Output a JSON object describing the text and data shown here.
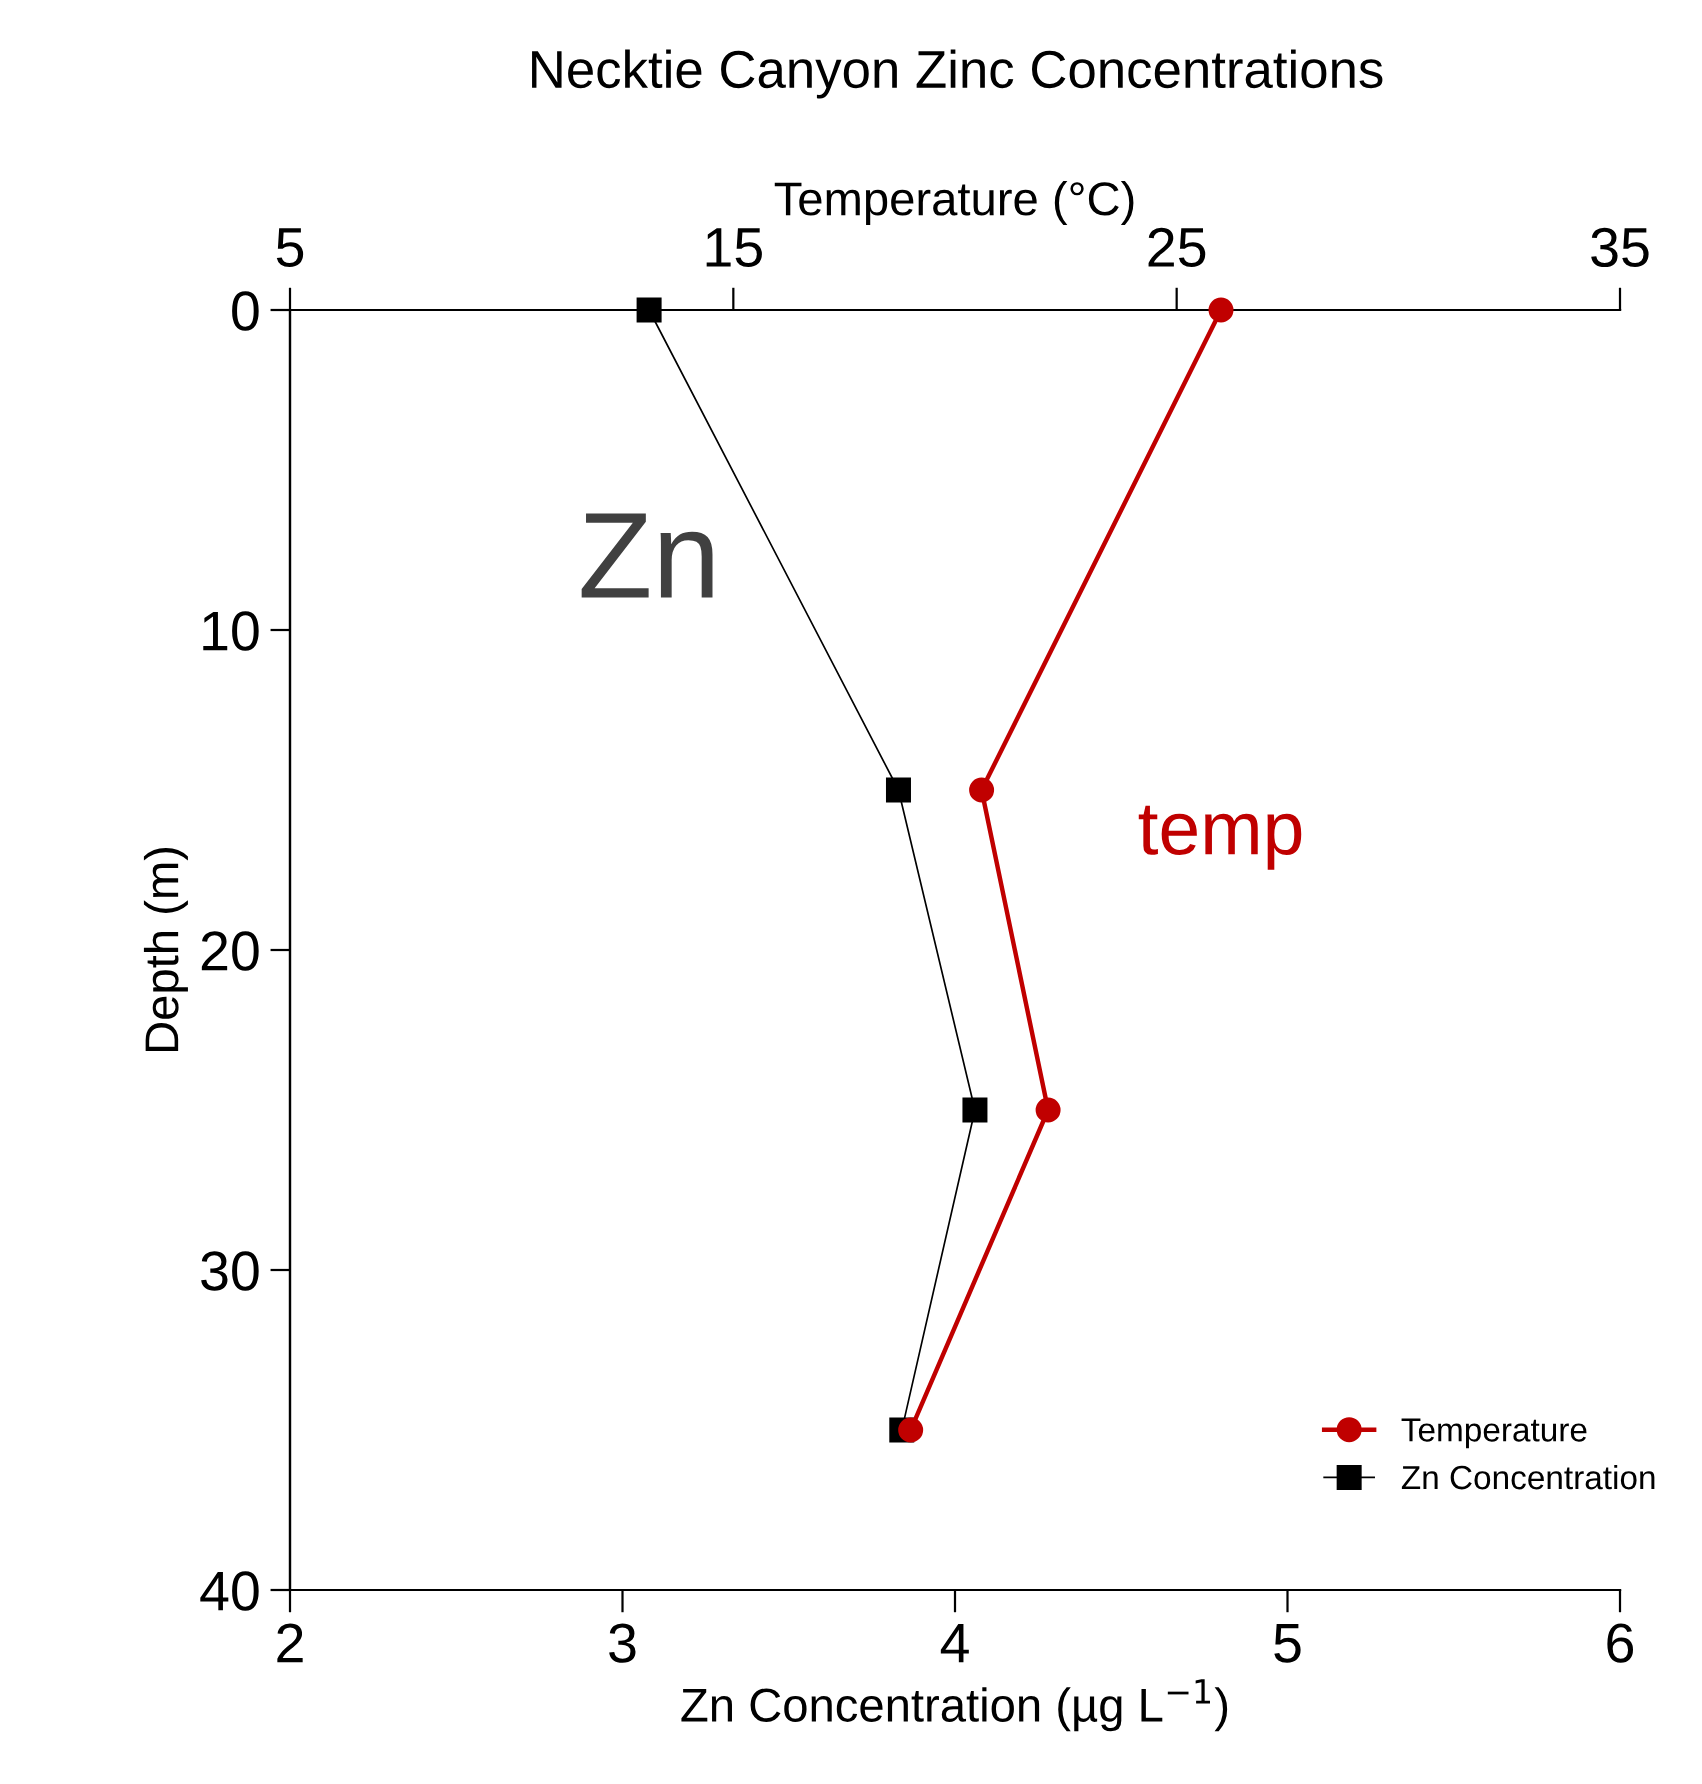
{
  "chart_data": {
    "type": "line",
    "title": "Necktie Canyon Zinc Concentrations",
    "xlabel": "Zn Concentration (µg L$^{−1}$)",
    "x2label": "Temperature (°C)",
    "ylabel": "Depth (m)",
    "xlim": [
      2,
      6
    ],
    "xticks": [
      2,
      3,
      4,
      5,
      6
    ],
    "x2lim": [
      5,
      35
    ],
    "x2ticks": [
      5,
      15,
      25,
      35
    ],
    "ylim": [
      40,
      0
    ],
    "yticks": [
      0,
      10,
      20,
      30,
      40
    ],
    "series": [
      {
        "name": "Temperature",
        "color": "#c00000",
        "axis": "x2",
        "marker": "circle",
        "x": [
          26.0,
          20.6,
          22.1,
          19.0
        ],
        "values": [
          0,
          15,
          25,
          35
        ]
      },
      {
        "name": "Zn Concentration",
        "color": "#000000",
        "marker": "square",
        "x": [
          3.08,
          3.83,
          4.06,
          3.84
        ],
        "values": [
          0,
          15,
          25,
          35
        ]
      }
    ],
    "annotations": [
      "Zn",
      "temp"
    ],
    "legend": "bottom right",
    "grid": false
  }
}
